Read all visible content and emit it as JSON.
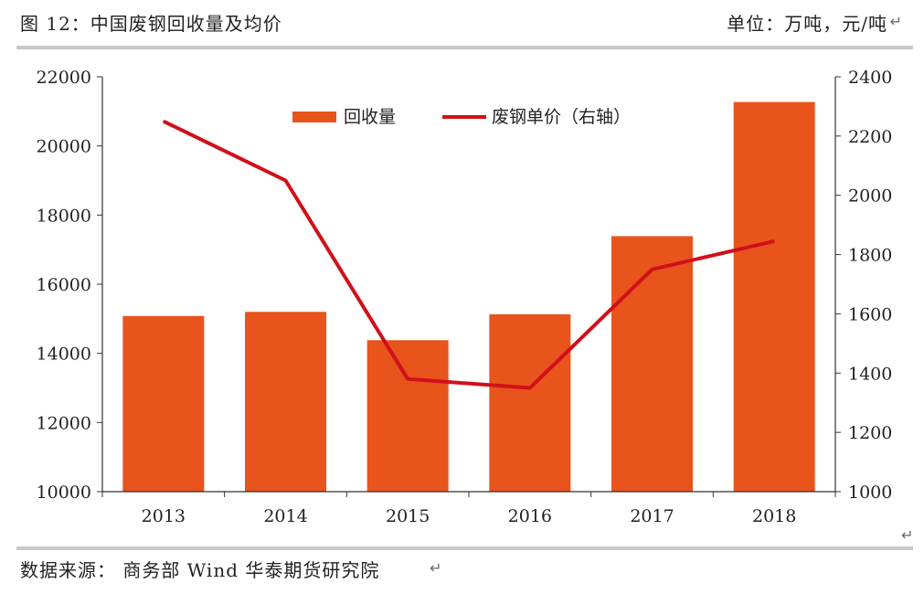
{
  "header": {
    "title": "图 12：中国废钢回收量及均价",
    "unit": "单位：万吨，元/吨"
  },
  "footer": {
    "source": "数据来源： 商务部 Wind 华泰期货研究院"
  },
  "colors": {
    "bar": "#e8541c",
    "line": "#d0101a",
    "axis": "#333333",
    "rule": "#c8c8c8"
  },
  "chart_data": {
    "type": "bar+line",
    "categories": [
      "2013",
      "2014",
      "2015",
      "2016",
      "2017",
      "2018"
    ],
    "series": [
      {
        "name": "回收量",
        "type": "bar",
        "axis": "left",
        "values": [
          15080,
          15200,
          14380,
          15130,
          17390,
          21270
        ]
      },
      {
        "name": "废钢单价（右轴）",
        "type": "line",
        "axis": "right",
        "values": [
          2250,
          2050,
          1380,
          1350,
          1750,
          1845
        ]
      }
    ],
    "y_left": {
      "min": 10000,
      "max": 22000,
      "ticks": [
        10000,
        12000,
        14000,
        16000,
        18000,
        20000,
        22000
      ]
    },
    "y_right": {
      "min": 1000,
      "max": 2400,
      "ticks": [
        1000,
        1200,
        1400,
        1600,
        1800,
        2000,
        2200,
        2400
      ]
    },
    "grid": false,
    "legend": "top-center"
  }
}
